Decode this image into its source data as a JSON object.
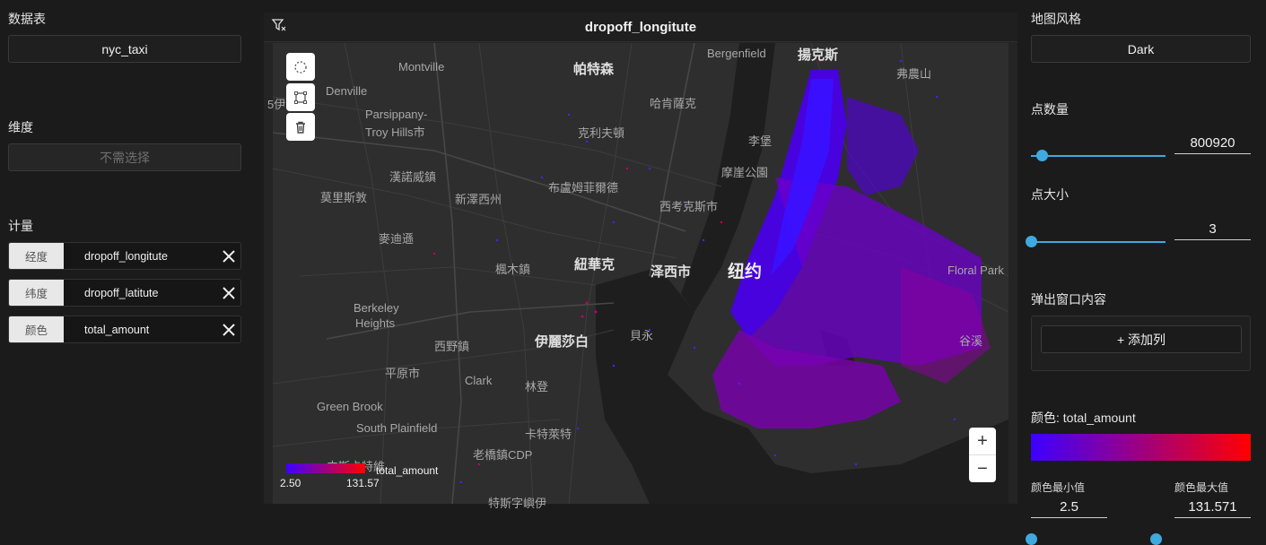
{
  "left": {
    "table_title": "数据表",
    "table_value": "nyc_taxi",
    "dimension_title": "维度",
    "dimension_placeholder": "不需选择",
    "measure_title": "计量",
    "measures": [
      {
        "tag": "经度",
        "value": "dropoff_longitute"
      },
      {
        "tag": "纬度",
        "value": "dropoff_latitute"
      },
      {
        "tag": "颜色",
        "value": "total_amount"
      }
    ]
  },
  "center": {
    "title": "dropoff_longitute",
    "legend": {
      "min": "2.50",
      "max": "131.57",
      "label": "total_amount",
      "color_from": "#3d00ff",
      "color_to": "#ff0000"
    },
    "zoom_in": "+",
    "zoom_out": "−",
    "map_labels": [
      {
        "text": "Montville"
      },
      {
        "text": "帕特森"
      },
      {
        "text": "Bergenfield"
      },
      {
        "text": "揚克斯"
      },
      {
        "text": "弗農山"
      },
      {
        "text": "Denville"
      },
      {
        "text": "哈肯薩克"
      },
      {
        "text": "Parsippany-"
      },
      {
        "text": "Troy Hills市"
      },
      {
        "text": "克利夫頓"
      },
      {
        "text": "李堡"
      },
      {
        "text": "摩崖公園"
      },
      {
        "text": "漢諾威鎮"
      },
      {
        "text": "布盧姆菲爾德"
      },
      {
        "text": "莫里斯敦"
      },
      {
        "text": "新澤西州"
      },
      {
        "text": "西考克斯市"
      },
      {
        "text": "麥迪遜"
      },
      {
        "text": "楓木鎮"
      },
      {
        "text": "紐華克"
      },
      {
        "text": "泽西市"
      },
      {
        "text": "纽约"
      },
      {
        "text": "Floral Park"
      },
      {
        "text": "Berkeley"
      },
      {
        "text": "Heights"
      },
      {
        "text": "西野鎮"
      },
      {
        "text": "伊麗莎白"
      },
      {
        "text": "貝永"
      },
      {
        "text": "谷溪"
      },
      {
        "text": "平原市"
      },
      {
        "text": "Clark"
      },
      {
        "text": "林登"
      },
      {
        "text": "Green Brook"
      },
      {
        "text": "South Plainfield"
      },
      {
        "text": "卡特萊特"
      },
      {
        "text": "老橋鎮CDP"
      },
      {
        "text": "中斯卡特維"
      },
      {
        "text": "特斯字嶼伊"
      },
      {
        "text": "5伊"
      }
    ]
  },
  "right": {
    "map_style_title": "地图风格",
    "map_style_value": "Dark",
    "point_count_title": "点数量",
    "point_count_value": "800920",
    "point_count_level": 0.08,
    "point_size_title": "点大小",
    "point_size_value": "3",
    "point_size_level": 0.0,
    "popup_title": "弹出窗口内容",
    "add_column": "+ 添加列",
    "color_title": "颜色: total_amount",
    "color_min_title": "颜色最小值",
    "color_max_title": "颜色最大值",
    "color_min_value": "2.5",
    "color_max_value": "131.571"
  }
}
